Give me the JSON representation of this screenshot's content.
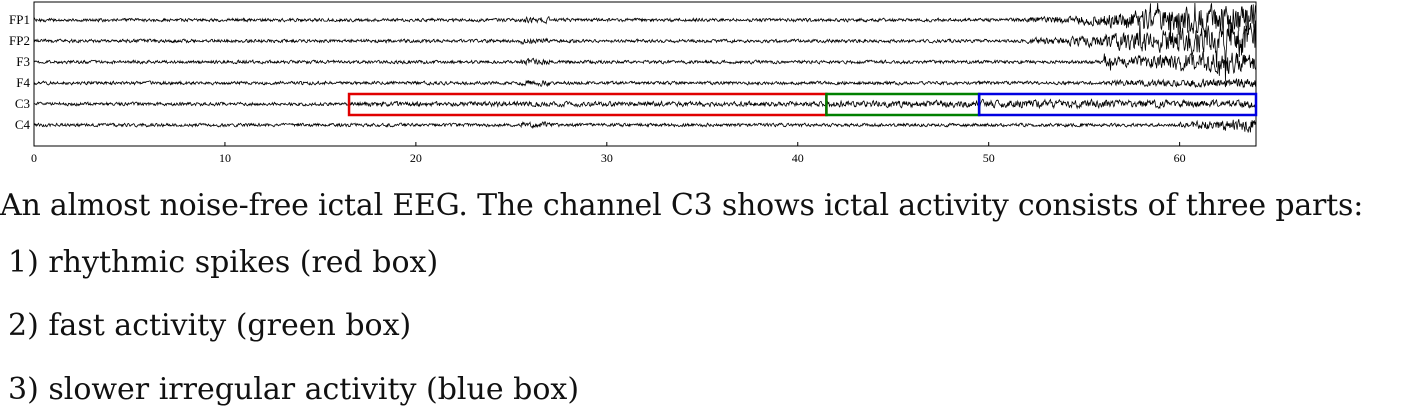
{
  "chart_data": {
    "type": "line",
    "title": "",
    "xlabel": "",
    "ylabel": "",
    "xlim": [
      0,
      64
    ],
    "x_ticks": [
      0,
      10,
      20,
      30,
      40,
      50,
      60
    ],
    "channels": [
      "FP1",
      "FP2",
      "F3",
      "F4",
      "C3",
      "C4"
    ],
    "boxes": [
      {
        "name": "rhythmic spikes",
        "channel": "C3",
        "x_start": 16.5,
        "x_end": 41.5,
        "color": "#e00000"
      },
      {
        "name": "fast activity",
        "channel": "C3",
        "x_start": 41.5,
        "x_end": 49.5,
        "color": "#008000"
      },
      {
        "name": "slower irregular activity",
        "channel": "C3",
        "x_start": 49.5,
        "x_end": 64,
        "color": "#0000e0"
      }
    ],
    "grid": false
  },
  "caption": {
    "main": "An almost noise-free ictal EEG. The channel C3 shows ictal activity consists of three parts:",
    "item1": "1) rhythmic spikes (red box)",
    "item2": "2) fast activity (green box)",
    "item3": "3) slower irregular activity (blue box)"
  }
}
